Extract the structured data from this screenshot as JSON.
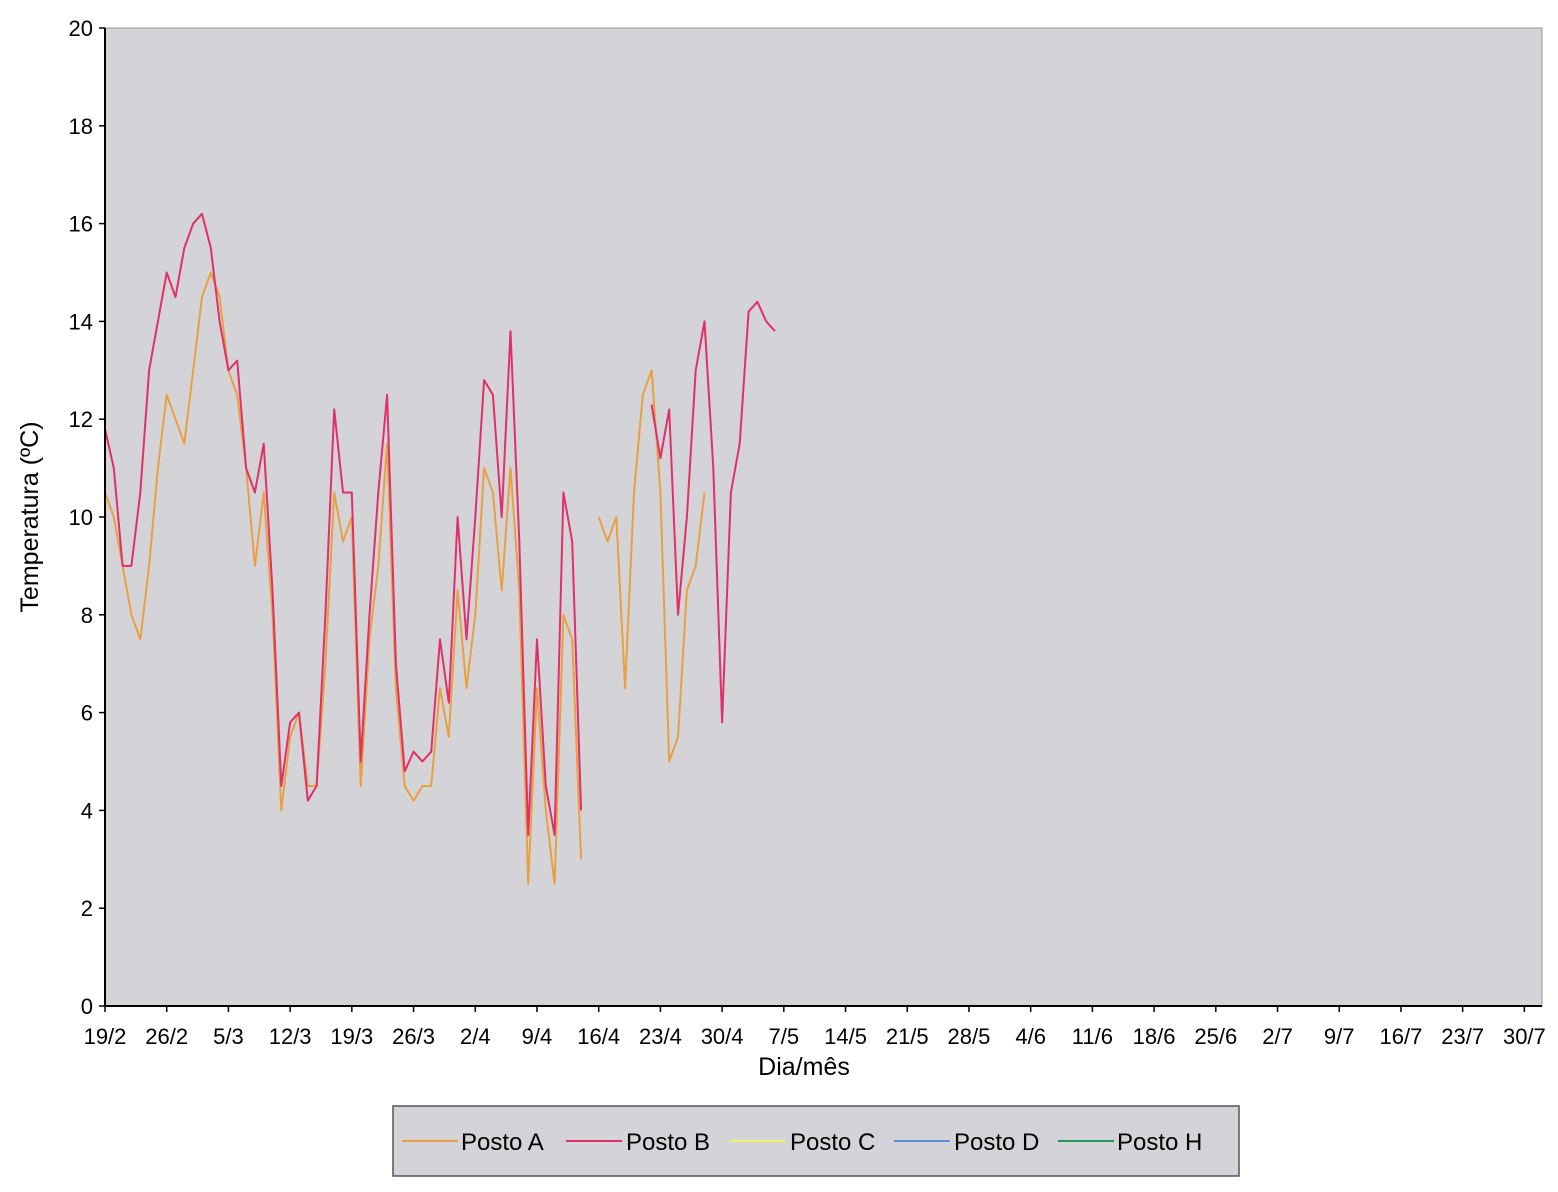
{
  "chart_data": {
    "type": "line",
    "xlabel": "Dia/mês",
    "ylabel": "Temperatura (ºC)",
    "ylim": [
      0,
      20
    ],
    "yticks": [
      0,
      2,
      4,
      6,
      8,
      10,
      12,
      14,
      16,
      18,
      20
    ],
    "x_start": "19/2",
    "x_end": "1/8",
    "x_tick_labels": [
      "19/2",
      "26/2",
      "5/3",
      "12/3",
      "19/3",
      "26/3",
      "2/4",
      "9/4",
      "16/4",
      "23/4",
      "30/4",
      "7/5",
      "14/5",
      "21/5",
      "28/5",
      "4/6",
      "11/6",
      "18/6",
      "25/6",
      "2/7",
      "9/7",
      "16/7",
      "23/7",
      "30/7"
    ],
    "grid": false,
    "legend_position": "bottom",
    "plot_background": "#d4d4d8",
    "series": [
      {
        "name": "Posto A",
        "color": "#e8a040",
        "points": [
          [
            "19/2",
            10.5
          ],
          [
            "20/2",
            10.0
          ],
          [
            "21/2",
            9.0
          ],
          [
            "22/2",
            8.0
          ],
          [
            "23/2",
            7.5
          ],
          [
            "24/2",
            9.0
          ],
          [
            "25/2",
            11.0
          ],
          [
            "26/2",
            12.5
          ],
          [
            "27/2",
            12.0
          ],
          [
            "28/2",
            11.5
          ],
          [
            "1/3",
            13.0
          ],
          [
            "2/3",
            14.5
          ],
          [
            "3/3",
            15.0
          ],
          [
            "4/3",
            14.5
          ],
          [
            "5/3",
            13.0
          ],
          [
            "6/3",
            12.5
          ],
          [
            "7/3",
            11.0
          ],
          [
            "8/3",
            9.0
          ],
          [
            "9/3",
            10.5
          ],
          [
            "10/3",
            8.0
          ],
          [
            "11/3",
            4.0
          ],
          [
            "12/3",
            5.5
          ],
          [
            "13/3",
            6.0
          ],
          [
            "14/3",
            4.5
          ],
          [
            "15/3",
            4.5
          ],
          [
            "16/3",
            7.0
          ],
          [
            "17/3",
            10.5
          ],
          [
            "18/3",
            9.5
          ],
          [
            "19/3",
            10.0
          ],
          [
            "20/3",
            4.5
          ],
          [
            "21/3",
            7.5
          ],
          [
            "22/3",
            9.0
          ],
          [
            "23/3",
            11.5
          ],
          [
            "24/3",
            6.5
          ],
          [
            "25/3",
            4.5
          ],
          [
            "26/3",
            4.2
          ],
          [
            "27/3",
            4.5
          ],
          [
            "28/3",
            4.5
          ],
          [
            "29/3",
            6.5
          ],
          [
            "30/3",
            5.5
          ],
          [
            "31/3",
            8.5
          ],
          [
            "1/4",
            6.5
          ],
          [
            "2/4",
            8.0
          ],
          [
            "3/4",
            11.0
          ],
          [
            "4/4",
            10.5
          ],
          [
            "5/4",
            8.5
          ],
          [
            "6/4",
            11.0
          ],
          [
            "7/4",
            8.5
          ],
          [
            "8/4",
            2.5
          ],
          [
            "9/4",
            6.5
          ],
          [
            "10/4",
            4.0
          ],
          [
            "11/4",
            2.5
          ],
          [
            "12/4",
            8.0
          ],
          [
            "13/4",
            7.5
          ],
          [
            "14/4",
            3.0
          ],
          null,
          [
            "16/4",
            10.0
          ],
          [
            "17/4",
            9.5
          ],
          [
            "18/4",
            10.0
          ],
          [
            "19/4",
            6.5
          ],
          [
            "20/4",
            10.5
          ],
          [
            "21/4",
            12.5
          ],
          [
            "22/4",
            13.0
          ],
          [
            "23/4",
            10.5
          ],
          [
            "24/4",
            5.0
          ],
          [
            "25/4",
            5.5
          ],
          [
            "26/4",
            8.5
          ],
          [
            "27/4",
            9.0
          ],
          [
            "28/4",
            10.5
          ]
        ]
      },
      {
        "name": "Posto B",
        "color": "#e0306a",
        "points": [
          [
            "19/2",
            11.8
          ],
          [
            "20/2",
            11.0
          ],
          [
            "21/2",
            9.0
          ],
          [
            "22/2",
            9.0
          ],
          [
            "23/2",
            10.5
          ],
          [
            "24/2",
            13.0
          ],
          [
            "25/2",
            14.0
          ],
          [
            "26/2",
            15.0
          ],
          [
            "27/2",
            14.5
          ],
          [
            "28/2",
            15.5
          ],
          [
            "1/3",
            16.0
          ],
          [
            "2/3",
            16.2
          ],
          [
            "3/3",
            15.5
          ],
          [
            "4/3",
            14.0
          ],
          [
            "5/3",
            13.0
          ],
          [
            "6/3",
            13.2
          ],
          [
            "7/3",
            11.0
          ],
          [
            "8/3",
            10.5
          ],
          [
            "9/3",
            11.5
          ],
          [
            "10/3",
            8.5
          ],
          [
            "11/3",
            4.5
          ],
          [
            "12/3",
            5.8
          ],
          [
            "13/3",
            6.0
          ],
          [
            "14/3",
            4.2
          ],
          [
            "15/3",
            4.5
          ],
          [
            "16/3",
            8.0
          ],
          [
            "17/3",
            12.2
          ],
          [
            "18/3",
            10.5
          ],
          [
            "19/3",
            10.5
          ],
          [
            "20/3",
            5.0
          ],
          [
            "21/3",
            8.0
          ],
          [
            "22/3",
            10.5
          ],
          [
            "23/3",
            12.5
          ],
          [
            "24/3",
            7.0
          ],
          [
            "25/3",
            4.8
          ],
          [
            "26/3",
            5.2
          ],
          [
            "27/3",
            5.0
          ],
          [
            "28/3",
            5.2
          ],
          [
            "29/3",
            7.5
          ],
          [
            "30/3",
            6.2
          ],
          [
            "31/3",
            10.0
          ],
          [
            "1/4",
            7.5
          ],
          [
            "2/4",
            10.0
          ],
          [
            "3/4",
            12.8
          ],
          [
            "4/4",
            12.5
          ],
          [
            "5/4",
            10.0
          ],
          [
            "6/4",
            13.8
          ],
          [
            "7/4",
            9.5
          ],
          [
            "8/4",
            3.5
          ],
          [
            "9/4",
            7.5
          ],
          [
            "10/4",
            4.5
          ],
          [
            "11/4",
            3.5
          ],
          [
            "12/4",
            10.5
          ],
          [
            "13/4",
            9.5
          ],
          [
            "14/4",
            4.0
          ],
          null,
          [
            "22/4",
            12.3
          ],
          [
            "23/4",
            11.2
          ],
          [
            "24/4",
            12.2
          ],
          [
            "25/4",
            8.0
          ],
          [
            "26/4",
            10.0
          ],
          [
            "27/4",
            13.0
          ],
          [
            "28/4",
            14.0
          ],
          [
            "29/4",
            11.0
          ],
          [
            "30/4",
            5.8
          ],
          [
            "1/5",
            10.5
          ],
          [
            "2/5",
            11.5
          ],
          [
            "3/5",
            14.2
          ],
          [
            "4/5",
            14.4
          ],
          [
            "5/5",
            14.0
          ],
          [
            "6/5",
            13.8
          ]
        ]
      }
    ]
  },
  "legend": {
    "items": [
      "Posto A",
      "Posto B",
      "Posto C",
      "Posto D",
      "Posto H"
    ]
  }
}
